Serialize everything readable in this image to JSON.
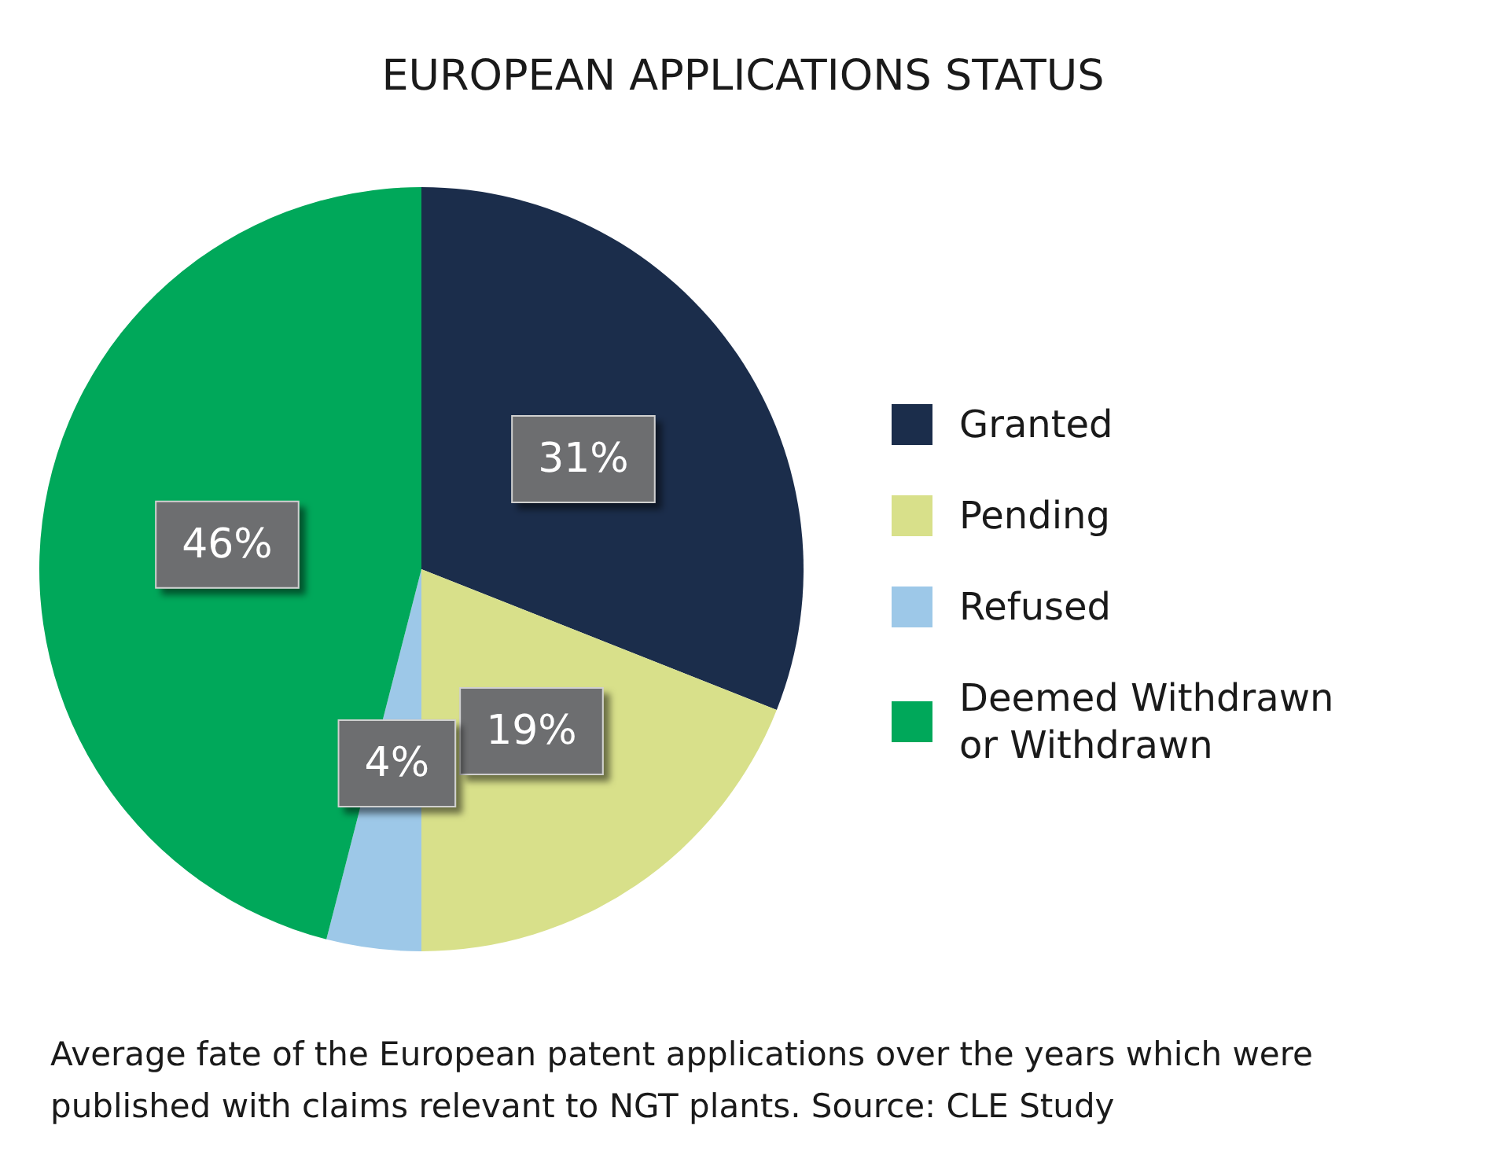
{
  "chart_data": {
    "type": "pie",
    "title": "EUROPEAN APPLICATIONS STATUS",
    "categories": [
      "Granted",
      "Pending",
      "Refused",
      "Deemed Withdrawn or Withdrawn"
    ],
    "values": [
      31,
      19,
      4,
      46
    ],
    "colors": [
      "#1b2d4b",
      "#d8e08a",
      "#9dc8e8",
      "#00a85a"
    ],
    "value_labels": [
      "31%",
      "19%",
      "4%",
      "46%"
    ],
    "legend": "right",
    "annotations": [
      "Average fate of the European patent applications over the years which were published with claims relevant to NGT plants. Source: CLE Study"
    ]
  }
}
